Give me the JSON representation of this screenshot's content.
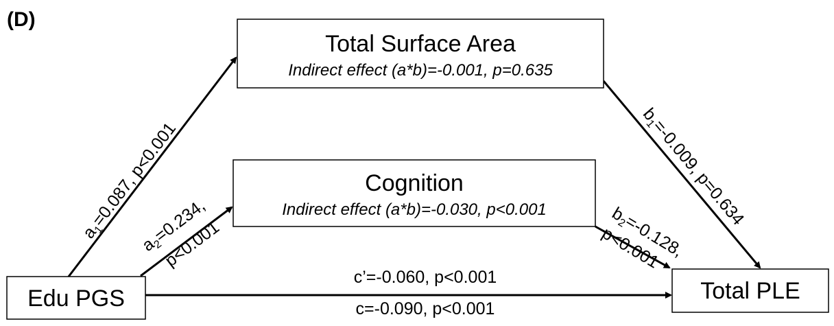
{
  "panel_label": "(D)",
  "nodes": [
    {
      "label": "Total Surface Area",
      "sublabel": "Indirect effect (a*b)=-0.001, p=0.635"
    },
    {
      "label": "Cognition",
      "sublabel": "Indirect effect (a*b)=-0.030, p<0.001"
    },
    {
      "label": "Edu PGS"
    },
    {
      "label": "Total PLE"
    }
  ],
  "edges": [
    {
      "symbol": "a",
      "subscript": "1",
      "text": "=0.087, p<0.001"
    },
    {
      "symbol": "a",
      "subscript": "2",
      "text": "=0.234,",
      "text2": "p<0.001"
    },
    {
      "symbol": "b",
      "subscript": "1",
      "text": "=-0.009, p=0.634"
    },
    {
      "symbol": "b",
      "subscript": "2",
      "text": "=-0.128,",
      "text2": "p<0.001"
    },
    {
      "text": "c’=-0.060, p<0.001"
    },
    {
      "text": "c=-0.090, p<0.001"
    }
  ]
}
